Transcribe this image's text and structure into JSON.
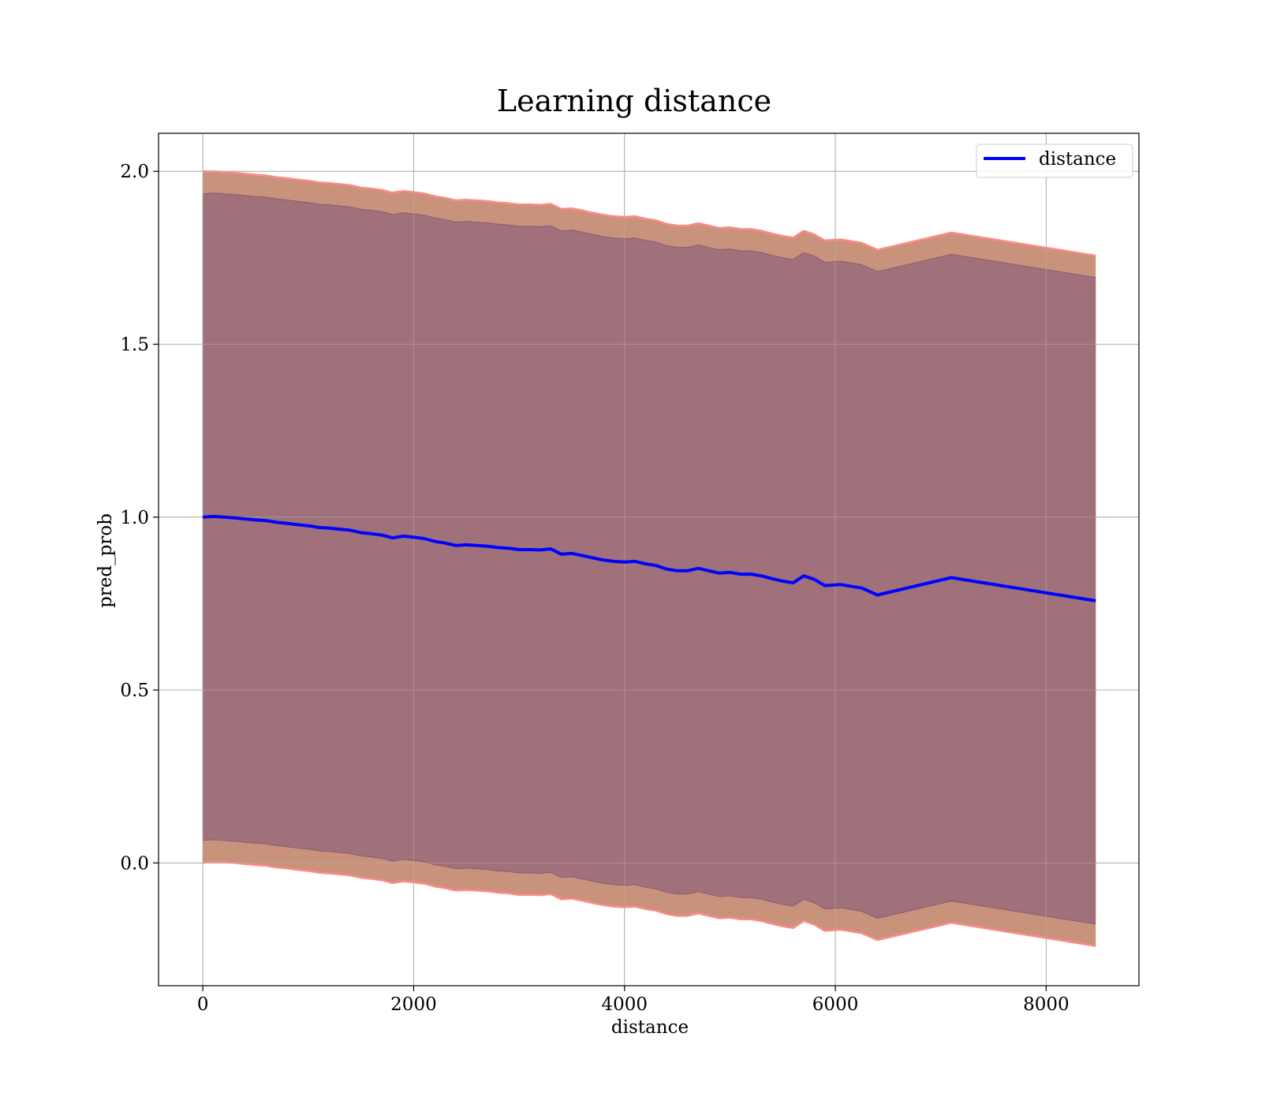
{
  "chart_data": {
    "type": "line",
    "title": "Learning distance",
    "xlabel": "distance",
    "ylabel": "pred_prob",
    "xlim": [
      -420,
      8880
    ],
    "ylim": [
      -0.355,
      2.11
    ],
    "xticks": [
      0,
      2000,
      4000,
      6000,
      8000
    ],
    "xtick_labels": [
      "0",
      "2000",
      "4000",
      "6000",
      "8000"
    ],
    "yticks": [
      0.0,
      0.5,
      1.0,
      1.5,
      2.0
    ],
    "ytick_labels": [
      "0.0",
      "0.5",
      "1.0",
      "1.5",
      "2.0"
    ],
    "grid": true,
    "legend_position": "top-right",
    "colors": {
      "line": "#0000ff",
      "outer_band": "#c8937a",
      "outer_band_edge": "#ff8a8a",
      "inner_band": "#a0717a",
      "grid": "#b0b0b0"
    },
    "series": [
      {
        "name": "distance",
        "x": [
          0,
          100,
          200,
          300,
          400,
          500,
          600,
          700,
          800,
          900,
          1000,
          1100,
          1200,
          1300,
          1400,
          1500,
          1600,
          1700,
          1800,
          1900,
          2000,
          2100,
          2200,
          2300,
          2400,
          2500,
          2600,
          2700,
          2800,
          2900,
          3000,
          3100,
          3200,
          3300,
          3400,
          3500,
          3600,
          3700,
          3800,
          3900,
          4000,
          4100,
          4200,
          4300,
          4400,
          4500,
          4600,
          4700,
          4800,
          4900,
          5000,
          5100,
          5200,
          5300,
          5400,
          5500,
          5600,
          5700,
          5800,
          5900,
          6050,
          6250,
          6400,
          7100,
          8470
        ],
        "y": [
          1.0,
          1.002,
          1.0,
          0.998,
          0.995,
          0.992,
          0.99,
          0.985,
          0.982,
          0.978,
          0.975,
          0.97,
          0.968,
          0.965,
          0.962,
          0.955,
          0.952,
          0.948,
          0.94,
          0.945,
          0.942,
          0.938,
          0.93,
          0.925,
          0.918,
          0.92,
          0.918,
          0.916,
          0.912,
          0.91,
          0.906,
          0.906,
          0.905,
          0.908,
          0.893,
          0.895,
          0.889,
          0.882,
          0.876,
          0.872,
          0.87,
          0.872,
          0.865,
          0.86,
          0.85,
          0.845,
          0.845,
          0.852,
          0.845,
          0.838,
          0.84,
          0.835,
          0.835,
          0.83,
          0.822,
          0.815,
          0.81,
          0.83,
          0.82,
          0.802,
          0.805,
          0.795,
          0.775,
          0.825,
          0.758
        ],
        "outer_upper": [
          2.0,
          2.0,
          1.998,
          1.996,
          1.993,
          1.99,
          1.988,
          1.983,
          1.98,
          1.976,
          1.973,
          1.968,
          1.966,
          1.963,
          1.96,
          1.953,
          1.95,
          1.946,
          1.938,
          1.943,
          1.94,
          1.936,
          1.928,
          1.923,
          1.916,
          1.918,
          1.916,
          1.914,
          1.91,
          1.908,
          1.904,
          1.904,
          1.903,
          1.906,
          1.891,
          1.893,
          1.887,
          1.88,
          1.874,
          1.87,
          1.868,
          1.87,
          1.863,
          1.858,
          1.848,
          1.843,
          1.843,
          1.85,
          1.843,
          1.836,
          1.838,
          1.833,
          1.833,
          1.828,
          1.82,
          1.813,
          1.808,
          1.828,
          1.818,
          1.8,
          1.803,
          1.793,
          1.773,
          1.823,
          1.756
        ],
        "outer_lower": [
          0.0,
          0.004,
          0.002,
          0.0,
          -0.003,
          -0.006,
          -0.008,
          -0.013,
          -0.016,
          -0.02,
          -0.023,
          -0.028,
          -0.03,
          -0.033,
          -0.036,
          -0.043,
          -0.046,
          -0.05,
          -0.058,
          -0.053,
          -0.056,
          -0.06,
          -0.068,
          -0.073,
          -0.08,
          -0.078,
          -0.08,
          -0.082,
          -0.086,
          -0.088,
          -0.092,
          -0.092,
          -0.093,
          -0.09,
          -0.105,
          -0.103,
          -0.109,
          -0.116,
          -0.122,
          -0.126,
          -0.128,
          -0.126,
          -0.133,
          -0.138,
          -0.148,
          -0.153,
          -0.153,
          -0.146,
          -0.153,
          -0.16,
          -0.158,
          -0.163,
          -0.163,
          -0.168,
          -0.176,
          -0.183,
          -0.188,
          -0.168,
          -0.178,
          -0.196,
          -0.193,
          -0.203,
          -0.223,
          -0.173,
          -0.24
        ],
        "inner_upper": [
          1.935,
          1.937,
          1.935,
          1.933,
          1.93,
          1.927,
          1.925,
          1.92,
          1.917,
          1.913,
          1.91,
          1.905,
          1.903,
          1.9,
          1.897,
          1.89,
          1.887,
          1.883,
          1.875,
          1.88,
          1.877,
          1.873,
          1.865,
          1.86,
          1.853,
          1.855,
          1.853,
          1.851,
          1.847,
          1.845,
          1.841,
          1.841,
          1.84,
          1.843,
          1.828,
          1.83,
          1.824,
          1.817,
          1.811,
          1.807,
          1.805,
          1.807,
          1.8,
          1.795,
          1.785,
          1.78,
          1.78,
          1.787,
          1.78,
          1.773,
          1.775,
          1.77,
          1.77,
          1.765,
          1.757,
          1.75,
          1.745,
          1.765,
          1.755,
          1.737,
          1.74,
          1.73,
          1.71,
          1.76,
          1.693
        ],
        "inner_lower": [
          0.065,
          0.067,
          0.065,
          0.063,
          0.06,
          0.057,
          0.055,
          0.05,
          0.047,
          0.043,
          0.04,
          0.035,
          0.033,
          0.03,
          0.027,
          0.02,
          0.017,
          0.013,
          0.005,
          0.01,
          0.007,
          0.003,
          -0.005,
          -0.01,
          -0.017,
          -0.015,
          -0.017,
          -0.019,
          -0.023,
          -0.025,
          -0.029,
          -0.029,
          -0.03,
          -0.027,
          -0.042,
          -0.04,
          -0.046,
          -0.053,
          -0.059,
          -0.063,
          -0.065,
          -0.063,
          -0.07,
          -0.075,
          -0.085,
          -0.09,
          -0.09,
          -0.083,
          -0.09,
          -0.097,
          -0.095,
          -0.1,
          -0.1,
          -0.105,
          -0.113,
          -0.12,
          -0.125,
          -0.105,
          -0.115,
          -0.133,
          -0.13,
          -0.14,
          -0.16,
          -0.11,
          -0.177
        ]
      }
    ]
  }
}
